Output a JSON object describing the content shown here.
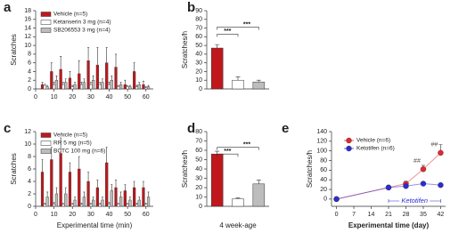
{
  "chart_data": [
    {
      "type": "bar",
      "label": "a",
      "y_label": "Scratches",
      "x": [
        5,
        10,
        15,
        20,
        25,
        30,
        35,
        40,
        45,
        50,
        55,
        60
      ],
      "xlim": [
        0,
        64
      ],
      "xticks": [
        0,
        10,
        20,
        30,
        40,
        50,
        60
      ],
      "ylim": [
        0,
        18
      ],
      "yticks": [
        0,
        2,
        4,
        6,
        8,
        10,
        12,
        14,
        16,
        18
      ],
      "series": [
        {
          "name": "Vehicle (n=5)",
          "color": "#c0171c",
          "values": [
            1,
            4,
            4.5,
            2.5,
            3.5,
            6.5,
            5.5,
            6,
            5,
            1,
            4,
            1
          ],
          "errors": [
            0.5,
            2,
            3,
            1.5,
            3,
            3,
            4,
            3.5,
            3,
            1,
            2,
            0.8
          ]
        },
        {
          "name": "Ketanserin 3 mg (n=4)",
          "color": "#ffffff",
          "values": [
            0.8,
            1,
            1,
            0.5,
            1,
            1,
            1,
            1,
            0.5,
            0.5,
            0.5,
            0.3
          ],
          "errors": [
            0.3,
            0.5,
            0.5,
            0.3,
            0.5,
            0.5,
            0.5,
            0.5,
            0.3,
            0.3,
            0.3,
            0.2
          ]
        },
        {
          "name": "SB206553 3 mg (n=4)",
          "color": "#bdbdbd",
          "values": [
            0.5,
            2,
            1.5,
            1,
            1.5,
            2,
            1.5,
            2,
            1,
            0.5,
            1,
            0.5
          ],
          "errors": [
            0.3,
            1,
            0.8,
            0.5,
            0.8,
            1,
            0.8,
            1,
            0.5,
            0.3,
            0.5,
            0.3
          ]
        }
      ]
    },
    {
      "type": "bar",
      "label": "b",
      "y_label": "Scratches/h",
      "categories": [
        null,
        null,
        null
      ],
      "values": [
        47,
        10,
        8
      ],
      "errors": [
        4,
        4,
        2
      ],
      "colors": [
        "#c0171c",
        "#ffffff",
        "#bdbdbd"
      ],
      "ylim": [
        0,
        90
      ],
      "yticks": [
        0,
        10,
        20,
        30,
        40,
        50,
        60,
        70,
        80,
        90
      ],
      "annotations": [
        "***",
        "***"
      ]
    },
    {
      "type": "bar",
      "label": "c",
      "y_label": "Scratches",
      "x_label": "Experimental time (min)",
      "x": [
        5,
        10,
        15,
        20,
        25,
        30,
        35,
        40,
        45,
        50,
        55,
        60
      ],
      "xlim": [
        0,
        64
      ],
      "xticks": [
        0,
        10,
        20,
        30,
        40,
        50,
        60
      ],
      "ylim": [
        0,
        12
      ],
      "yticks": [
        0,
        2,
        4,
        6,
        8,
        10,
        12
      ],
      "series": [
        {
          "name": "Vehicle (n=5)",
          "color": "#c0171c",
          "values": [
            5.5,
            7.5,
            8.5,
            5.5,
            6,
            4,
            3,
            7,
            3,
            2.5,
            3,
            3
          ],
          "errors": [
            2,
            2,
            2.5,
            1.5,
            2,
            1.5,
            1.2,
            2.5,
            1.2,
            1,
            1,
            1
          ]
        },
        {
          "name": "RR 5 mg (n=5)",
          "color": "#ffffff",
          "values": [
            0.3,
            0.4,
            0.3,
            0.3,
            0.3,
            0.3,
            0.3,
            0.4,
            0.3,
            0.3,
            0.3,
            0.3
          ],
          "errors": [
            0.2,
            0.2,
            0.2,
            0.2,
            0.2,
            0.2,
            0.2,
            0.2,
            0.2,
            0.2,
            0.2,
            0.2
          ]
        },
        {
          "name": "BCTC 100 mg (n=6)",
          "color": "#bdbdbd",
          "values": [
            1.5,
            2,
            2,
            1,
            1.5,
            1,
            1,
            2.5,
            1.5,
            1,
            1,
            1.5
          ],
          "errors": [
            0.8,
            1,
            1,
            0.5,
            0.8,
            0.5,
            0.5,
            1,
            0.8,
            0.5,
            0.5,
            0.8
          ]
        }
      ]
    },
    {
      "type": "bar",
      "label": "d",
      "y_label": "Scratches/h",
      "x_label": "4 week-age",
      "categories": [
        null,
        null,
        null
      ],
      "values": [
        56,
        8,
        24
      ],
      "errors": [
        3,
        1,
        4
      ],
      "colors": [
        "#c0171c",
        "#ffffff",
        "#bdbdbd"
      ],
      "ylim": [
        0,
        80
      ],
      "yticks": [
        0,
        10,
        20,
        30,
        40,
        50,
        60,
        70,
        80
      ],
      "annotations": [
        "***",
        "***"
      ]
    },
    {
      "type": "line",
      "label": "e",
      "y_label": "Scratches/h",
      "x_label": "Experimental time (day)",
      "x": [
        0,
        21,
        28,
        35,
        42
      ],
      "xlim": [
        -2,
        44
      ],
      "xticks": [
        0,
        7,
        14,
        21,
        28,
        35,
        42
      ],
      "ylim": [
        -15,
        140
      ],
      "yticks": [
        0,
        20,
        40,
        60,
        80,
        100,
        120,
        140
      ],
      "series": [
        {
          "name": "Vehicle (n=6)",
          "color": "#e8262b",
          "values": [
            0,
            24,
            32,
            62,
            96
          ],
          "errors": [
            0,
            3,
            5,
            8,
            17
          ]
        },
        {
          "name": "Ketotifen (n=6)",
          "color": "#2b2bd6",
          "values": [
            0,
            24,
            27,
            32,
            29
          ],
          "errors": [
            0,
            2,
            3,
            3,
            3
          ]
        }
      ],
      "annotations": [
        "##",
        "##"
      ],
      "treatment": {
        "label": "Ketotifen",
        "start": 21,
        "end": 42
      }
    }
  ]
}
